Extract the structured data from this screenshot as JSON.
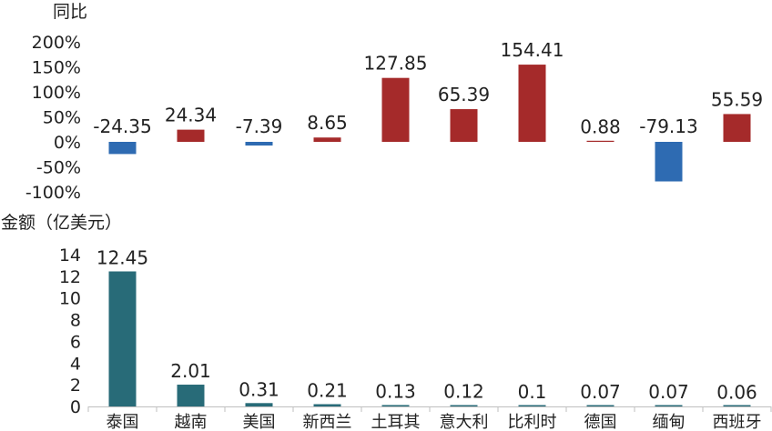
{
  "chart_data": [
    {
      "type": "bar",
      "ylabel": "同比",
      "categories": [
        "泰国",
        "越南",
        "美国",
        "新西兰",
        "土耳其",
        "意大利",
        "比利时",
        "德国",
        "缅甸",
        "西班牙"
      ],
      "values": [
        -24.35,
        24.34,
        -7.39,
        8.65,
        127.85,
        65.39,
        154.41,
        0.88,
        -79.13,
        55.59
      ],
      "value_labels": [
        "-24.35",
        "24.34",
        "-7.39",
        "8.65",
        "127.85",
        "65.39",
        "154.41",
        "0.88",
        "-79.13",
        "55.59"
      ],
      "ylim": [
        -100,
        200
      ],
      "yticks": [
        -100,
        -50,
        0,
        50,
        100,
        150,
        200
      ],
      "ytick_labels": [
        "-100%",
        "-50%",
        "0%",
        "50%",
        "100%",
        "150%",
        "200%"
      ],
      "colors": {
        "positive": "#a52a2a",
        "negative": "#2e6bb2"
      },
      "grid": false
    },
    {
      "type": "bar",
      "ylabel": "金额（亿美元）",
      "categories": [
        "泰国",
        "越南",
        "美国",
        "新西兰",
        "土耳其",
        "意大利",
        "比利时",
        "德国",
        "缅甸",
        "西班牙"
      ],
      "values": [
        12.45,
        2.01,
        0.31,
        0.21,
        0.13,
        0.12,
        0.1,
        0.07,
        0.07,
        0.06
      ],
      "value_labels": [
        "12.45",
        "2.01",
        "0.31",
        "0.21",
        "0.13",
        "0.12",
        "0.1",
        "0.07",
        "0.07",
        "0.06"
      ],
      "ylim": [
        0,
        14
      ],
      "yticks": [
        0,
        2,
        4,
        6,
        8,
        10,
        12,
        14
      ],
      "ytick_labels": [
        "0",
        "2",
        "4",
        "6",
        "8",
        "10",
        "12",
        "14"
      ],
      "colors": {
        "bar": "#286b78"
      },
      "grid": false
    }
  ]
}
